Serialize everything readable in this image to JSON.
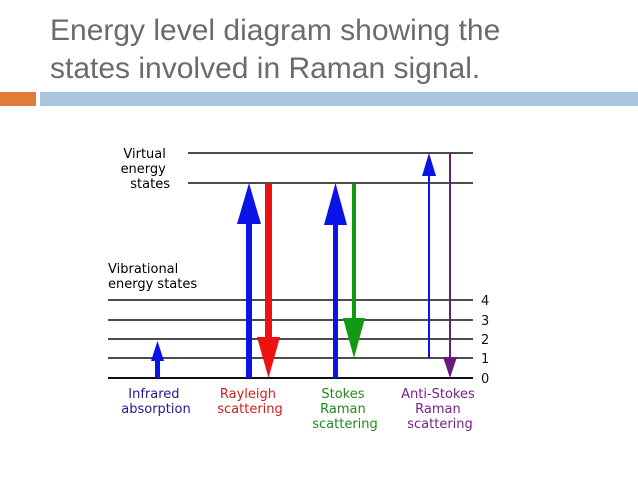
{
  "slide": {
    "title_lines": [
      "Energy level diagram showing the",
      "states involved in Raman signal."
    ],
    "title_color": "#6b6b6b",
    "accent_orange": "#e07b39",
    "accent_blue": "#a9c4de"
  },
  "diagram": {
    "virtual_label": [
      "Virtual",
      "energy",
      "states"
    ],
    "vibrational_label": [
      "Vibrational",
      "energy states"
    ],
    "level_numbers": [
      "4",
      "3",
      "2",
      "1",
      "0"
    ],
    "processes": [
      {
        "id": "infrared",
        "lines": [
          "Infrared",
          "absorption"
        ],
        "color": "#1c1c8c"
      },
      {
        "id": "rayleigh",
        "lines": [
          "Rayleigh",
          "scattering"
        ],
        "color": "#cc1f1f"
      },
      {
        "id": "stokes",
        "lines": [
          "Stokes",
          "Raman",
          "scattering"
        ],
        "color": "#1f8a1f"
      },
      {
        "id": "antistokes",
        "lines": [
          "Anti-Stokes",
          "Raman",
          "scattering"
        ],
        "color": "#7a1f8a"
      }
    ],
    "arrow_colors": {
      "blue": "#0a14e6",
      "red": "#ee1111",
      "green": "#119911",
      "purple": "#6a1a7a"
    }
  }
}
